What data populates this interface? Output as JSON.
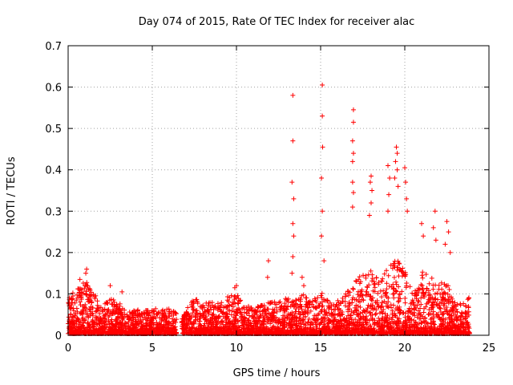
{
  "chart_data": {
    "type": "scatter",
    "title": "Day 074 of 2015, Rate Of TEC Index for receiver alac",
    "xlabel": "GPS time / hours",
    "ylabel": "ROTI / TECUs",
    "xlim": [
      0,
      25
    ],
    "ylim": [
      0,
      0.7
    ],
    "xticks": [
      0,
      5,
      10,
      15,
      20,
      25
    ],
    "yticks": [
      0,
      0.1,
      0.2,
      0.3,
      0.4,
      0.5,
      0.6,
      0.7
    ],
    "grid": true,
    "marker": "+",
    "color": "#ff0000",
    "series": [
      {
        "points": [
          [
            13.35,
            0.58
          ],
          [
            13.35,
            0.47
          ],
          [
            13.3,
            0.37
          ],
          [
            13.4,
            0.33
          ],
          [
            13.35,
            0.27
          ],
          [
            13.4,
            0.24
          ],
          [
            13.35,
            0.19
          ],
          [
            13.3,
            0.15
          ],
          [
            15.1,
            0.605
          ],
          [
            15.1,
            0.53
          ],
          [
            15.12,
            0.455
          ],
          [
            15.05,
            0.38
          ],
          [
            15.1,
            0.3
          ],
          [
            15.05,
            0.24
          ],
          [
            15.2,
            0.18
          ],
          [
            16.95,
            0.545
          ],
          [
            16.95,
            0.515
          ],
          [
            16.9,
            0.47
          ],
          [
            16.95,
            0.44
          ],
          [
            16.9,
            0.42
          ],
          [
            16.9,
            0.37
          ],
          [
            16.95,
            0.345
          ],
          [
            16.9,
            0.31
          ],
          [
            19.5,
            0.455
          ],
          [
            19.55,
            0.44
          ],
          [
            19.45,
            0.42
          ],
          [
            19.55,
            0.4
          ],
          [
            19.4,
            0.38
          ],
          [
            19.6,
            0.36
          ],
          [
            18.0,
            0.385
          ],
          [
            17.95,
            0.37
          ],
          [
            18.05,
            0.35
          ],
          [
            18.0,
            0.32
          ],
          [
            17.9,
            0.29
          ],
          [
            19.0,
            0.41
          ],
          [
            19.1,
            0.38
          ],
          [
            19.05,
            0.34
          ],
          [
            19.0,
            0.3
          ],
          [
            20.0,
            0.405
          ],
          [
            20.05,
            0.37
          ],
          [
            20.1,
            0.33
          ],
          [
            20.15,
            0.3
          ],
          [
            21.8,
            0.3
          ],
          [
            21.7,
            0.26
          ],
          [
            21.85,
            0.23
          ],
          [
            21.0,
            0.27
          ],
          [
            21.1,
            0.24
          ],
          [
            22.5,
            0.275
          ],
          [
            22.6,
            0.25
          ],
          [
            22.4,
            0.22
          ],
          [
            22.7,
            0.2
          ],
          [
            11.9,
            0.18
          ],
          [
            11.85,
            0.14
          ],
          [
            13.9,
            0.14
          ],
          [
            14.0,
            0.12
          ],
          [
            1.1,
            0.16
          ],
          [
            1.05,
            0.15
          ],
          [
            0.7,
            0.135
          ],
          [
            2.5,
            0.12
          ],
          [
            3.2,
            0.105
          ],
          [
            10.0,
            0.12
          ],
          [
            9.9,
            0.115
          ]
        ],
        "envelope": [
          [
            0.0,
            0.09
          ],
          [
            0.5,
            0.11
          ],
          [
            1.0,
            0.13
          ],
          [
            1.5,
            0.1
          ],
          [
            2.0,
            0.07
          ],
          [
            2.5,
            0.09
          ],
          [
            3.0,
            0.08
          ],
          [
            3.5,
            0.05
          ],
          [
            4.0,
            0.06
          ],
          [
            4.5,
            0.055
          ],
          [
            5.0,
            0.06
          ],
          [
            5.5,
            0.065
          ],
          [
            6.0,
            0.06
          ],
          [
            6.5,
            0.05
          ],
          [
            6.8,
            0.04
          ],
          [
            7.2,
            0.07
          ],
          [
            7.5,
            0.09
          ],
          [
            8.0,
            0.07
          ],
          [
            8.5,
            0.08
          ],
          [
            9.0,
            0.075
          ],
          [
            9.5,
            0.09
          ],
          [
            10.0,
            0.1
          ],
          [
            10.5,
            0.07
          ],
          [
            11.0,
            0.065
          ],
          [
            11.5,
            0.07
          ],
          [
            12.0,
            0.08
          ],
          [
            12.5,
            0.075
          ],
          [
            13.0,
            0.09
          ],
          [
            13.5,
            0.085
          ],
          [
            14.0,
            0.1
          ],
          [
            14.5,
            0.08
          ],
          [
            15.0,
            0.1
          ],
          [
            15.5,
            0.09
          ],
          [
            16.0,
            0.085
          ],
          [
            16.5,
            0.1
          ],
          [
            17.0,
            0.13
          ],
          [
            17.5,
            0.15
          ],
          [
            18.0,
            0.16
          ],
          [
            18.5,
            0.13
          ],
          [
            19.0,
            0.16
          ],
          [
            19.5,
            0.18
          ],
          [
            20.0,
            0.16
          ],
          [
            20.5,
            0.09
          ],
          [
            21.0,
            0.15
          ],
          [
            21.5,
            0.14
          ],
          [
            22.0,
            0.12
          ],
          [
            22.5,
            0.13
          ],
          [
            23.0,
            0.08
          ],
          [
            23.5,
            0.09
          ],
          [
            23.85,
            0.09
          ]
        ],
        "gaps": [
          [
            6.45,
            6.75
          ]
        ]
      }
    ]
  }
}
